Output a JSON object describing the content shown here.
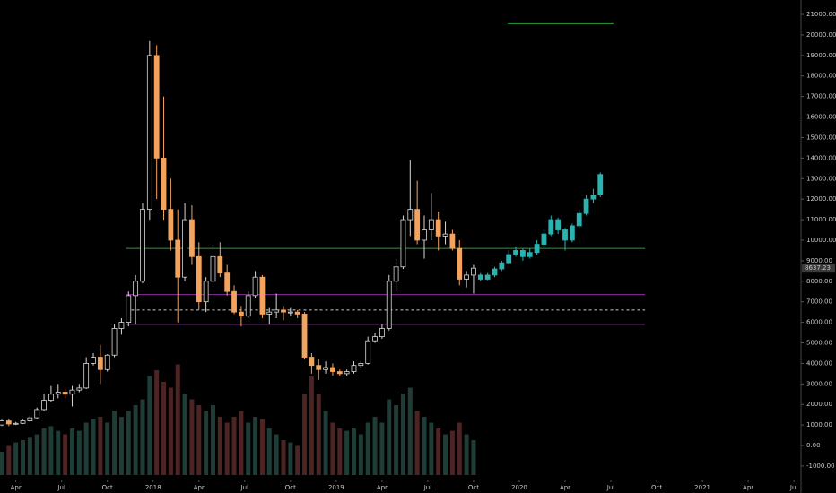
{
  "chart_data": {
    "type": "candlestick",
    "xlim": [
      8.5,
      236
    ],
    "ylim": [
      -1440,
      21700
    ],
    "vlim": [
      0,
      100
    ],
    "xticks": [
      {
        "value": 13,
        "label": "Apr"
      },
      {
        "value": 26,
        "label": "Jul"
      },
      {
        "value": 39,
        "label": "Oct"
      },
      {
        "value": 52,
        "label": "2018"
      },
      {
        "value": 65,
        "label": "Apr"
      },
      {
        "value": 78,
        "label": "Jul"
      },
      {
        "value": 91,
        "label": "Oct"
      },
      {
        "value": 104,
        "label": "2019"
      },
      {
        "value": 117,
        "label": "Apr"
      },
      {
        "value": 130,
        "label": "Jul"
      },
      {
        "value": 143,
        "label": "Oct"
      },
      {
        "value": 156,
        "label": "2020"
      },
      {
        "value": 169,
        "label": "Apr"
      },
      {
        "value": 182,
        "label": "Jul"
      },
      {
        "value": 195,
        "label": "Oct"
      },
      {
        "value": 208,
        "label": "2021"
      },
      {
        "value": 221,
        "label": "Apr"
      },
      {
        "value": 234,
        "label": "Jul"
      }
    ],
    "yticks": [
      {
        "value": 21000,
        "label": "21000.00"
      },
      {
        "value": 20000,
        "label": "20000.00"
      },
      {
        "value": 19000,
        "label": "19000.00"
      },
      {
        "value": 18000,
        "label": "18000.00"
      },
      {
        "value": 17000,
        "label": "17000.00"
      },
      {
        "value": 16000,
        "label": "16000.00"
      },
      {
        "value": 15000,
        "label": "15000.00"
      },
      {
        "value": 14000,
        "label": "14000.00"
      },
      {
        "value": 13000,
        "label": "13000.00"
      },
      {
        "value": 12000,
        "label": "12000.00"
      },
      {
        "value": 11000,
        "label": "11000.00"
      },
      {
        "value": 10000,
        "label": "10000.00"
      },
      {
        "value": 9000,
        "label": "9000.00"
      },
      {
        "value": 8000,
        "label": "8000.00"
      },
      {
        "value": 7000,
        "label": "7000.00"
      },
      {
        "value": 6000,
        "label": "6000.00"
      },
      {
        "value": 5000,
        "label": "5000.00"
      },
      {
        "value": 4000,
        "label": "4000.00"
      },
      {
        "value": 3000,
        "label": "3000.00"
      },
      {
        "value": 2000,
        "label": "2000.00"
      },
      {
        "value": 1000,
        "label": "1000.00"
      },
      {
        "value": 0,
        "label": "0.00"
      },
      {
        "value": -1000,
        "label": "-1000.00"
      }
    ],
    "last_price": 8637.23,
    "series": [
      {
        "color": "#f2a35e",
        "up_color": "#d8d8d8",
        "x": [
          9,
          11,
          13,
          15,
          17,
          19,
          21,
          23,
          25,
          27,
          29,
          31,
          33,
          35,
          37,
          39,
          41,
          43,
          45,
          47,
          49,
          51,
          53,
          55,
          57,
          59,
          61,
          63,
          65,
          67,
          69,
          71,
          73,
          75,
          77,
          79,
          81,
          83,
          85,
          87,
          89,
          91,
          93,
          95,
          97,
          99,
          101,
          103,
          105,
          107,
          109,
          111,
          113,
          115,
          117,
          119,
          121,
          123,
          125,
          127,
          129,
          131,
          133,
          135,
          137,
          139,
          141,
          143
        ],
        "open": [
          1000,
          1200,
          1050,
          1080,
          1200,
          1350,
          1750,
          2200,
          2500,
          2600,
          2500,
          2700,
          2800,
          4000,
          4300,
          3700,
          4400,
          5700,
          6000,
          7300,
          8000,
          11500,
          19000,
          14000,
          11500,
          10000,
          8200,
          11000,
          9200,
          7000,
          8000,
          9200,
          8400,
          7500,
          6500,
          6300,
          7300,
          8200,
          6400,
          6500,
          6600,
          6500,
          6500,
          6400,
          4300,
          3900,
          3700,
          3800,
          3600,
          3500,
          3600,
          3900,
          4000,
          5100,
          5300,
          5700,
          8000,
          8700,
          11000,
          11500,
          10000,
          10500,
          11000,
          10200,
          10300,
          9600,
          8100,
          8300
        ],
        "close": [
          1200,
          1050,
          1080,
          1200,
          1350,
          1750,
          2200,
          2500,
          2600,
          2500,
          2700,
          2800,
          4000,
          4300,
          3700,
          4400,
          5700,
          6000,
          7300,
          8000,
          11500,
          19000,
          14000,
          11500,
          10000,
          8200,
          11000,
          9200,
          7000,
          8000,
          9200,
          8400,
          7500,
          6500,
          6300,
          7300,
          8200,
          6400,
          6500,
          6600,
          6500,
          6500,
          6400,
          4300,
          3900,
          3700,
          3800,
          3600,
          3500,
          3600,
          3900,
          4000,
          5100,
          5300,
          5700,
          8000,
          8700,
          11000,
          11500,
          10000,
          10500,
          11000,
          10200,
          10300,
          9600,
          8100,
          8300,
          8637.23
        ],
        "high": [
          1250,
          1280,
          1150,
          1250,
          1450,
          1850,
          2500,
          2900,
          3000,
          2750,
          2900,
          3000,
          4300,
          4500,
          4900,
          4450,
          5900,
          6200,
          7500,
          8300,
          11800,
          19700,
          19500,
          17000,
          13000,
          11500,
          11800,
          11700,
          9900,
          8200,
          9800,
          9900,
          8800,
          7800,
          6800,
          7500,
          8500,
          8300,
          6700,
          7400,
          6800,
          6700,
          6600,
          6500,
          4500,
          4200,
          4100,
          4000,
          3700,
          3700,
          4100,
          4100,
          5300,
          5500,
          5900,
          8300,
          9100,
          11200,
          13900,
          12900,
          11200,
          12300,
          11400,
          10900,
          10500,
          10000,
          8500,
          8800
        ],
        "low": [
          950,
          950,
          1000,
          1050,
          1150,
          1300,
          1700,
          2100,
          2300,
          2300,
          1900,
          2600,
          2750,
          3900,
          3000,
          3600,
          4300,
          5400,
          5800,
          5900,
          7900,
          11000,
          12000,
          11000,
          9500,
          6000,
          8000,
          8800,
          6600,
          6500,
          7900,
          8200,
          7300,
          6400,
          5800,
          6200,
          7200,
          6200,
          5900,
          6200,
          6100,
          6300,
          6200,
          4200,
          3500,
          3200,
          3500,
          3400,
          3400,
          3400,
          3500,
          3800,
          3950,
          5000,
          5200,
          5600,
          7500,
          8600,
          10200,
          9800,
          9100,
          10000,
          9500,
          9800,
          9500,
          7800,
          7700,
          7400
        ],
        "volume": [
          20,
          25,
          28,
          30,
          32,
          35,
          40,
          42,
          38,
          35,
          40,
          38,
          45,
          48,
          50,
          45,
          55,
          50,
          55,
          60,
          65,
          85,
          90,
          80,
          75,
          95,
          70,
          65,
          60,
          55,
          60,
          50,
          45,
          50,
          55,
          45,
          50,
          48,
          40,
          35,
          30,
          28,
          25,
          70,
          85,
          70,
          55,
          45,
          40,
          38,
          40,
          35,
          45,
          50,
          45,
          65,
          60,
          70,
          75,
          55,
          50,
          45,
          40,
          35,
          38,
          45,
          35,
          30
        ]
      },
      {
        "color": "#2bb3b1",
        "x": [
          145,
          147,
          149,
          151,
          153,
          155,
          157,
          159,
          161,
          163,
          165,
          167,
          169,
          171,
          173,
          175,
          177,
          179
        ],
        "open": [
          8300,
          8100,
          8300,
          8600,
          8900,
          9300,
          9500,
          9200,
          9400,
          9800,
          10300,
          11000,
          10500,
          10000,
          10700,
          11300,
          12000,
          12200
        ],
        "close": [
          8100,
          8300,
          8600,
          8900,
          9300,
          9500,
          9200,
          9400,
          9800,
          10300,
          11000,
          10500,
          10000,
          10700,
          11300,
          12000,
          12200,
          13200
        ],
        "high": [
          8400,
          8400,
          8700,
          9000,
          9500,
          9700,
          9600,
          9600,
          10000,
          10500,
          11200,
          11100,
          10600,
          10800,
          11500,
          12200,
          12500,
          13300
        ],
        "low": [
          8000,
          8050,
          8200,
          8500,
          8800,
          9200,
          9000,
          9100,
          9300,
          9700,
          10200,
          10300,
          9500,
          9900,
          10600,
          11200,
          11800,
          12100
        ]
      }
    ],
    "hlines": [
      {
        "value": 20550,
        "from": 152.7,
        "to": 182.8,
        "color": "#2a9d3a",
        "dash": false
      },
      {
        "value": 9600,
        "from": 44.3,
        "to": 191.7,
        "color": "#2a9d3a",
        "dash": false
      },
      {
        "value": 7350,
        "from": 44.3,
        "to": 191.7,
        "color": "#8b2f9c",
        "dash": false
      },
      {
        "value": 6600,
        "from": 44.3,
        "to": 191.7,
        "color": "#cccccc",
        "dash": true
      },
      {
        "value": 5900,
        "from": 44.3,
        "to": 191.7,
        "color": "#8b2f9c",
        "dash": false
      }
    ]
  }
}
